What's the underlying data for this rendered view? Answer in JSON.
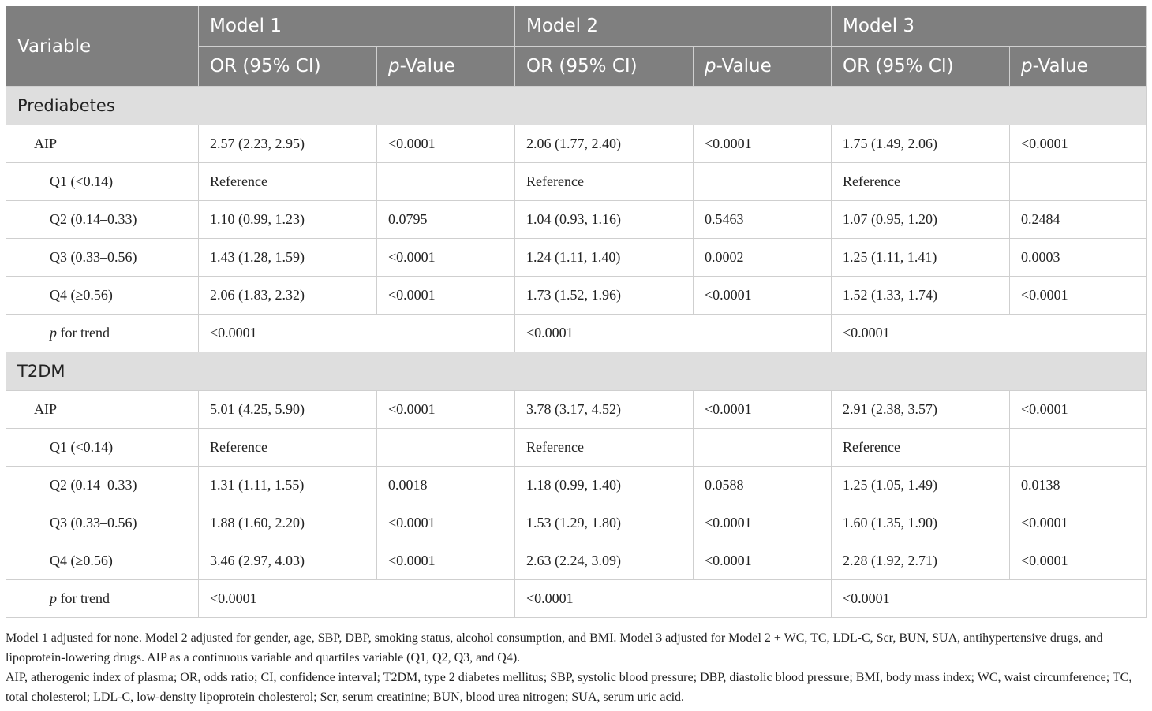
{
  "header": {
    "variable": "Variable",
    "models": [
      "Model 1",
      "Model 2",
      "Model 3"
    ],
    "or_label": "OR (95% CI)",
    "p_prefix": "p",
    "p_suffix": "-Value"
  },
  "sections": [
    {
      "title": "Prediabetes",
      "rows": [
        {
          "label": "AIP",
          "cells": [
            "2.57 (2.23, 2.95)",
            "<0.0001",
            "2.06 (1.77, 2.40)",
            "<0.0001",
            "1.75 (1.49, 2.06)",
            "<0.0001"
          ]
        },
        {
          "label": "Q1 (<0.14)",
          "cells": [
            "Reference",
            "",
            "Reference",
            "",
            "Reference",
            ""
          ]
        },
        {
          "label": "Q2 (0.14–0.33)",
          "cells": [
            "1.10 (0.99, 1.23)",
            "0.0795",
            "1.04 (0.93, 1.16)",
            "0.5463",
            "1.07 (0.95, 1.20)",
            "0.2484"
          ]
        },
        {
          "label": "Q3 (0.33–0.56)",
          "cells": [
            "1.43 (1.28, 1.59)",
            "<0.0001",
            "1.24 (1.11, 1.40)",
            "0.0002",
            "1.25 (1.11, 1.41)",
            "0.0003"
          ]
        },
        {
          "label": "Q4 (≥0.56)",
          "cells": [
            "2.06 (1.83, 2.32)",
            "<0.0001",
            "1.73 (1.52, 1.96)",
            "<0.0001",
            "1.52 (1.33, 1.74)",
            "<0.0001"
          ]
        }
      ],
      "trend": {
        "label_p": "p",
        "label_rest": " for trend",
        "values": [
          "<0.0001",
          "<0.0001",
          "<0.0001"
        ]
      }
    },
    {
      "title": "T2DM",
      "rows": [
        {
          "label": "AIP",
          "cells": [
            "5.01 (4.25, 5.90)",
            "<0.0001",
            "3.78 (3.17, 4.52)",
            "<0.0001",
            "2.91 (2.38, 3.57)",
            "<0.0001"
          ]
        },
        {
          "label": "Q1 (<0.14)",
          "cells": [
            "Reference",
            "",
            "Reference",
            "",
            "Reference",
            ""
          ]
        },
        {
          "label": "Q2 (0.14–0.33)",
          "cells": [
            "1.31 (1.11, 1.55)",
            "0.0018",
            "1.18 (0.99, 1.40)",
            "0.0588",
            "1.25 (1.05, 1.49)",
            "0.0138"
          ]
        },
        {
          "label": "Q3 (0.33–0.56)",
          "cells": [
            "1.88 (1.60, 2.20)",
            "<0.0001",
            "1.53 (1.29, 1.80)",
            "<0.0001",
            "1.60 (1.35, 1.90)",
            "<0.0001"
          ]
        },
        {
          "label": "Q4 (≥0.56)",
          "cells": [
            "3.46 (2.97, 4.03)",
            "<0.0001",
            "2.63 (2.24, 3.09)",
            "<0.0001",
            "2.28 (1.92, 2.71)",
            "<0.0001"
          ]
        }
      ],
      "trend": {
        "label_p": "p",
        "label_rest": " for trend",
        "values": [
          "<0.0001",
          "<0.0001",
          "<0.0001"
        ]
      }
    }
  ],
  "footnotes": [
    "Model 1 adjusted for none. Model 2 adjusted for gender, age, SBP, DBP, smoking status, alcohol consumption, and BMI. Model 3 adjusted for Model 2 + WC, TC, LDL-C, Scr, BUN, SUA, antihypertensive drugs, and lipoprotein-lowering drugs. AIP as a continuous variable and quartiles variable (Q1, Q2, Q3, and Q4).",
    "AIP, atherogenic index of plasma; OR, odds ratio; CI, confidence interval; T2DM, type 2 diabetes mellitus; SBP, systolic blood pressure; DBP, diastolic blood pressure; BMI, body mass index; WC, waist circumference; TC, total cholesterol; LDL-C, low-density lipoprotein cholesterol; Scr, serum creatinine; BUN, blood urea nitrogen; SUA, serum uric acid."
  ]
}
